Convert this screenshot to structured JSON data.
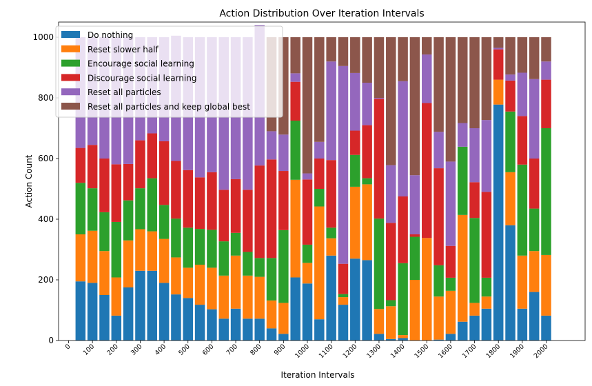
{
  "chart_data": {
    "type": "bar",
    "stacked": true,
    "title": "Action Distribution Over Iteration Intervals",
    "xlabel": "Iteration Intervals",
    "ylabel": "Action Count",
    "ylim": [
      0,
      1050
    ],
    "yticks": [
      "0",
      "200",
      "400",
      "600",
      "800",
      "1000"
    ],
    "xtick_labels": [
      "0",
      "100",
      "200",
      "300",
      "400",
      "500",
      "600",
      "700",
      "800",
      "900",
      "1000",
      "1100",
      "1200",
      "1300",
      "1400",
      "1500",
      "1600",
      "1700",
      "1800",
      "1900",
      "2000"
    ],
    "legend_position": "upper-left",
    "categories": [
      "50",
      "100",
      "150",
      "200",
      "250",
      "300",
      "350",
      "400",
      "450",
      "500",
      "550",
      "600",
      "650",
      "700",
      "750",
      "800",
      "850",
      "900",
      "950",
      "1000",
      "1050",
      "1100",
      "1150",
      "1200",
      "1250",
      "1300",
      "1350",
      "1400",
      "1450",
      "1500",
      "1550",
      "1600",
      "1650",
      "1700",
      "1750",
      "1800",
      "1850",
      "1900",
      "1950",
      "2000"
    ],
    "series": [
      {
        "name": "Do nothing",
        "color": "#1f77b4",
        "values": [
          195,
          190,
          150,
          82,
          175,
          230,
          230,
          190,
          152,
          140,
          118,
          103,
          72,
          105,
          72,
          72,
          40,
          22,
          208,
          188,
          70,
          280,
          118,
          270,
          265,
          22,
          5,
          8,
          0,
          0,
          3,
          22,
          62,
          82,
          105,
          778,
          380,
          105,
          160,
          82
        ]
      },
      {
        "name": "Reset slower half",
        "color": "#ff7f0e",
        "values": [
          155,
          172,
          145,
          126,
          155,
          137,
          130,
          145,
          122,
          100,
          132,
          137,
          142,
          175,
          142,
          138,
          92,
          102,
          322,
          68,
          372,
          57,
          25,
          237,
          250,
          82,
          108,
          10,
          200,
          338,
          142,
          142,
          352,
          42,
          40,
          82,
          175,
          175,
          135,
          200
        ]
      },
      {
        "name": "Encourage social learning",
        "color": "#2ca02c",
        "values": [
          170,
          140,
          128,
          183,
          132,
          135,
          175,
          112,
          128,
          132,
          118,
          125,
          113,
          75,
          78,
          62,
          140,
          240,
          195,
          60,
          58,
          35,
          10,
          105,
          20,
          298,
          20,
          237,
          142,
          0,
          103,
          43,
          225,
          280,
          62,
          0,
          200,
          300,
          140,
          418
        ]
      },
      {
        "name": "Discourage social learning",
        "color": "#d62728",
        "values": [
          115,
          143,
          177,
          190,
          120,
          158,
          148,
          210,
          190,
          190,
          170,
          190,
          170,
          177,
          205,
          305,
          325,
          195,
          128,
          215,
          100,
          223,
          100,
          80,
          175,
          395,
          255,
          220,
          8,
          445,
          320,
          105,
          0,
          118,
          283,
          100,
          102,
          160,
          165,
          160
        ]
      },
      {
        "name": "Reset all particles",
        "color": "#9467bd",
        "values": [
          365,
          355,
          400,
          419,
          418,
          340,
          317,
          343,
          413,
          438,
          462,
          445,
          503,
          468,
          503,
          463,
          93,
          120,
          28,
          20,
          55,
          325,
          652,
          190,
          140,
          3,
          190,
          380,
          195,
          160,
          120,
          278,
          78,
          178,
          237,
          5,
          20,
          143,
          262,
          60
        ]
      },
      {
        "name": "Reset all particles and keep global best",
        "color": "#8c564b",
        "values": [
          0,
          0,
          0,
          0,
          0,
          0,
          0,
          0,
          0,
          0,
          0,
          0,
          0,
          0,
          0,
          0,
          310,
          321,
          119,
          449,
          345,
          80,
          95,
          118,
          150,
          200,
          422,
          145,
          455,
          57,
          312,
          410,
          283,
          300,
          273,
          35,
          123,
          117,
          138,
          80
        ]
      }
    ]
  }
}
